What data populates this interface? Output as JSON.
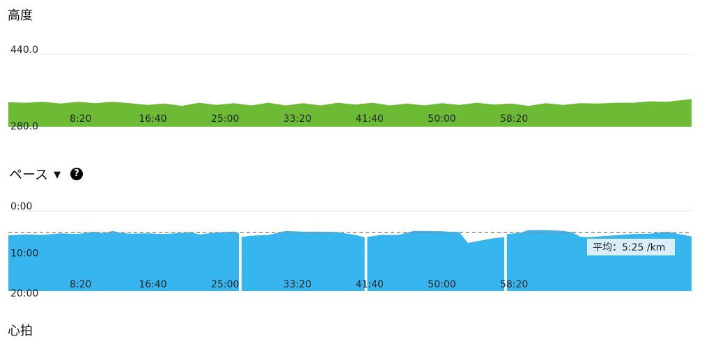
{
  "elevation": {
    "title": "高度"
  },
  "pace": {
    "title": "ペース",
    "dropdown_icon": "triangle-down-icon",
    "help_icon": "question-circle-icon",
    "help_text": "?"
  },
  "heart_rate": {
    "title": "心拍"
  },
  "colors": {
    "elevation_fill": "#6dbb35",
    "pace_fill": "#37b5ef",
    "average_line": "#888888",
    "average_label_bg": "#d8eef9"
  },
  "chart_data": [
    {
      "type": "area",
      "name": "elevation",
      "x_unit": "minutes",
      "xlim": [
        0,
        78.8
      ],
      "ylim": [
        280.0,
        440.0
      ],
      "ytick_labels": [
        "440.0",
        "280.0"
      ],
      "ytick_values": [
        440.0,
        280.0
      ],
      "xtick_labels": [
        "8:20",
        "16:40",
        "25:00",
        "33:20",
        "41:40",
        "50:00",
        "58:20"
      ],
      "xtick_values": [
        8.33,
        16.67,
        25.0,
        33.33,
        41.67,
        50.0,
        58.33
      ],
      "grid": true,
      "x": [
        0,
        2,
        4,
        6,
        8,
        10,
        12,
        14,
        16,
        18,
        20,
        22,
        24,
        26,
        28,
        30,
        32,
        34,
        36,
        38,
        40,
        42,
        44,
        46,
        48,
        50,
        52,
        54,
        56,
        58,
        60,
        62,
        64,
        66,
        68,
        70,
        72,
        74,
        76,
        78.8
      ],
      "y": [
        334,
        333,
        335,
        331,
        335,
        332,
        335,
        332,
        328,
        331,
        326,
        333,
        328,
        332,
        327,
        333,
        327,
        332,
        327,
        333,
        329,
        333,
        327,
        331,
        327,
        332,
        328,
        333,
        329,
        331,
        326,
        332,
        328,
        332,
        331,
        333,
        333,
        336,
        335,
        341
      ]
    },
    {
      "type": "area",
      "name": "pace",
      "x_unit": "minutes",
      "xlim": [
        0,
        78.8
      ],
      "ylim": [
        0,
        20
      ],
      "y_unit": "min/km",
      "inverted_y": true,
      "ytick_labels": [
        "0:00",
        "10:00",
        "20:00"
      ],
      "ytick_values": [
        0,
        10,
        20
      ],
      "xtick_labels": [
        "8:20",
        "16:40",
        "25:00",
        "33:20",
        "41:40",
        "50:00",
        "58:20"
      ],
      "xtick_values": [
        8.33,
        16.67,
        25.0,
        33.33,
        41.67,
        50.0,
        58.33
      ],
      "grid": true,
      "average": {
        "value": 5.42,
        "label": "平均：5:25 /km"
      },
      "segments": [
        {
          "x": [
            0,
            2,
            4,
            6,
            8,
            10,
            11,
            12,
            13,
            14,
            16,
            18,
            20,
            21,
            22,
            24,
            26,
            26.6
          ],
          "y": [
            6.1,
            5.9,
            6.0,
            5.6,
            5.8,
            5.2,
            5.6,
            5.0,
            5.5,
            5.7,
            5.6,
            5.8,
            5.5,
            5.3,
            5.9,
            5.4,
            5.2,
            5.6
          ]
        },
        {
          "x": [
            26.9,
            28,
            30,
            32,
            34,
            36,
            38,
            40,
            41.1
          ],
          "y": [
            6.5,
            6.2,
            6.0,
            5.0,
            5.2,
            5.2,
            5.3,
            6.0,
            6.6
          ]
        },
        {
          "x": [
            41.4,
            43,
            45,
            46.8,
            48,
            50,
            52,
            53,
            54,
            56,
            57.2
          ],
          "y": [
            6.5,
            6.0,
            6.0,
            5.0,
            5.0,
            5.1,
            5.3,
            8.0,
            7.6,
            6.8,
            6.6
          ]
        },
        {
          "x": [
            57.5,
            59,
            60,
            62,
            64,
            65,
            66,
            67,
            68,
            70,
            72,
            74,
            76,
            77,
            78.8
          ],
          "y": [
            5.8,
            5.5,
            4.8,
            4.8,
            5.0,
            5.3,
            6.5,
            6.6,
            6.4,
            6.1,
            5.8,
            5.7,
            5.2,
            5.6,
            6.4
          ]
        }
      ]
    }
  ]
}
